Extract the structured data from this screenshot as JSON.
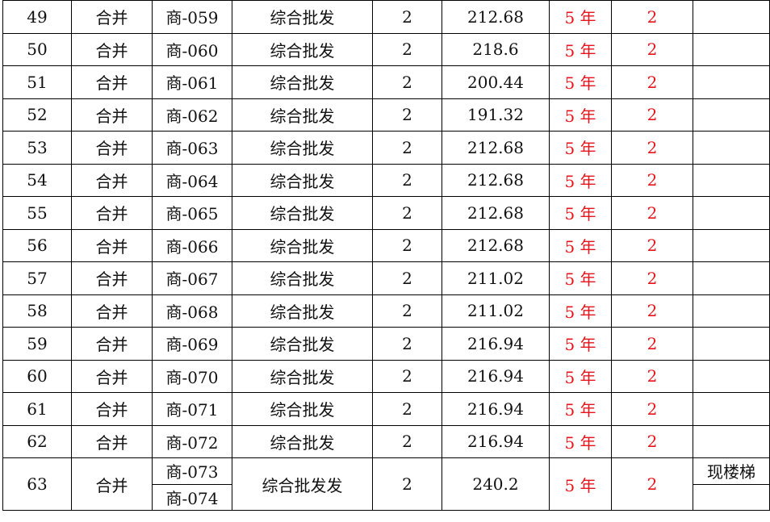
{
  "accent_red": "#e8141b",
  "rows": [
    {
      "no": "49",
      "type": "合并",
      "codes": [
        "商-059"
      ],
      "use": "综合批发",
      "floor": "2",
      "area": "212.68",
      "term": "5 年",
      "count": "2",
      "remark": [
        ""
      ]
    },
    {
      "no": "50",
      "type": "合并",
      "codes": [
        "商-060"
      ],
      "use": "综合批发",
      "floor": "2",
      "area": "218.6",
      "term": "5 年",
      "count": "2",
      "remark": [
        ""
      ]
    },
    {
      "no": "51",
      "type": "合并",
      "codes": [
        "商-061"
      ],
      "use": "综合批发",
      "floor": "2",
      "area": "200.44",
      "term": "5 年",
      "count": "2",
      "remark": [
        ""
      ]
    },
    {
      "no": "52",
      "type": "合并",
      "codes": [
        "商-062"
      ],
      "use": "综合批发",
      "floor": "2",
      "area": "191.32",
      "term": "5 年",
      "count": "2",
      "remark": [
        ""
      ]
    },
    {
      "no": "53",
      "type": "合并",
      "codes": [
        "商-063"
      ],
      "use": "综合批发",
      "floor": "2",
      "area": "212.68",
      "term": "5 年",
      "count": "2",
      "remark": [
        ""
      ]
    },
    {
      "no": "54",
      "type": "合并",
      "codes": [
        "商-064"
      ],
      "use": "综合批发",
      "floor": "2",
      "area": "212.68",
      "term": "5 年",
      "count": "2",
      "remark": [
        ""
      ]
    },
    {
      "no": "55",
      "type": "合并",
      "codes": [
        "商-065"
      ],
      "use": "综合批发",
      "floor": "2",
      "area": "212.68",
      "term": "5 年",
      "count": "2",
      "remark": [
        ""
      ]
    },
    {
      "no": "56",
      "type": "合并",
      "codes": [
        "商-066"
      ],
      "use": "综合批发",
      "floor": "2",
      "area": "212.68",
      "term": "5 年",
      "count": "2",
      "remark": [
        ""
      ]
    },
    {
      "no": "57",
      "type": "合并",
      "codes": [
        "商-067"
      ],
      "use": "综合批发",
      "floor": "2",
      "area": "211.02",
      "term": "5 年",
      "count": "2",
      "remark": [
        ""
      ]
    },
    {
      "no": "58",
      "type": "合并",
      "codes": [
        "商-068"
      ],
      "use": "综合批发",
      "floor": "2",
      "area": "211.02",
      "term": "5 年",
      "count": "2",
      "remark": [
        ""
      ]
    },
    {
      "no": "59",
      "type": "合并",
      "codes": [
        "商-069"
      ],
      "use": "综合批发",
      "floor": "2",
      "area": "216.94",
      "term": "5 年",
      "count": "2",
      "remark": [
        ""
      ]
    },
    {
      "no": "60",
      "type": "合并",
      "codes": [
        "商-070"
      ],
      "use": "综合批发",
      "floor": "2",
      "area": "216.94",
      "term": "5 年",
      "count": "2",
      "remark": [
        ""
      ]
    },
    {
      "no": "61",
      "type": "合并",
      "codes": [
        "商-071"
      ],
      "use": "综合批发",
      "floor": "2",
      "area": "216.94",
      "term": "5 年",
      "count": "2",
      "remark": [
        ""
      ]
    },
    {
      "no": "62",
      "type": "合并",
      "codes": [
        "商-072"
      ],
      "use": "综合批发",
      "floor": "2",
      "area": "216.94",
      "term": "5 年",
      "count": "2",
      "remark": [
        ""
      ]
    },
    {
      "no": "63",
      "type": "合并",
      "codes": [
        "商-073",
        "商-074"
      ],
      "use": "综合批发发",
      "floor": "2",
      "area": "240.2",
      "term": "5 年",
      "count": "2",
      "remark": [
        "现楼梯",
        ""
      ]
    }
  ]
}
